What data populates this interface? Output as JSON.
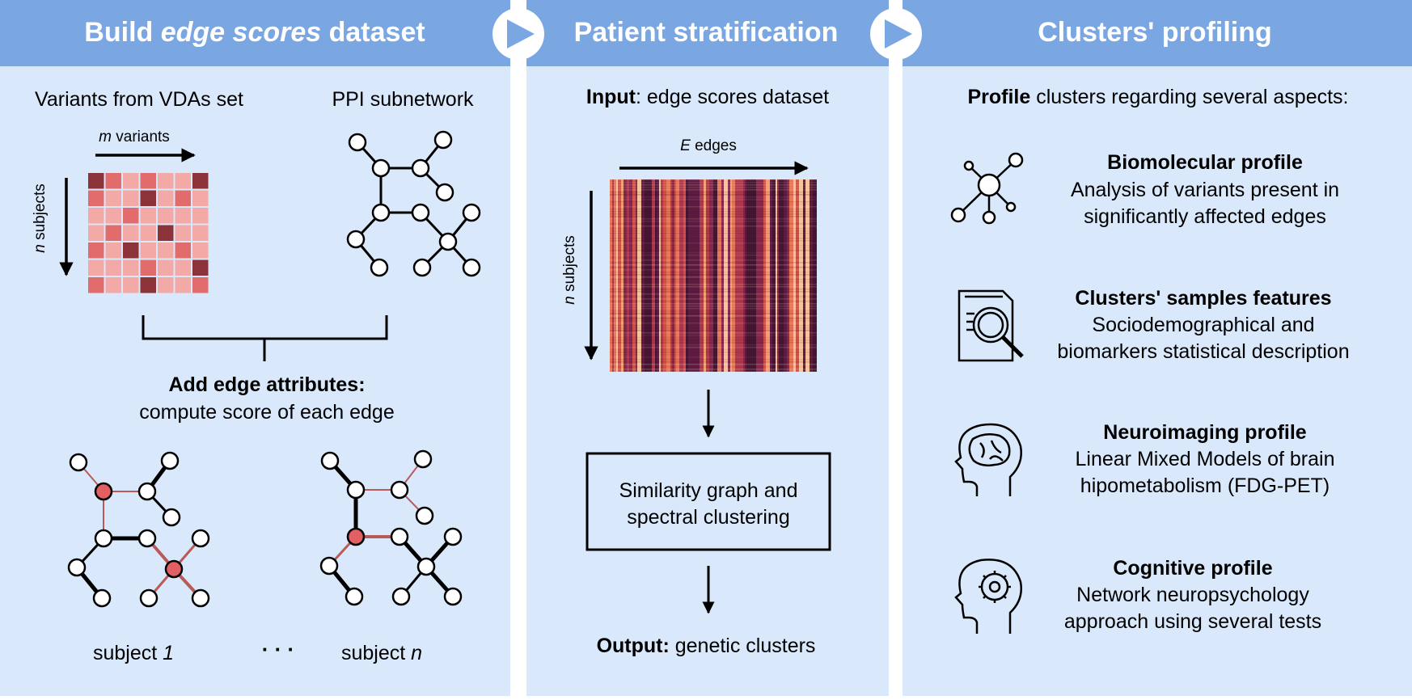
{
  "colors": {
    "panel": "#d9e8fb",
    "header": "#7aa6e1",
    "cell_light": "#f3a9a6",
    "cell_mid": "#e26b6b",
    "cell_dark": "#8b3338",
    "edge_red": "#b85a57",
    "node_red": "#e25f63"
  },
  "panel1": {
    "title_pre": "Build ",
    "title_em": "edge scores",
    "title_post": " dataset",
    "variants_label": "Variants from VDAs set",
    "ppi_label": "PPI subnetwork",
    "matrix_x_em": "m",
    "matrix_x_text": " variants",
    "matrix_y_em": "n",
    "matrix_y_text": " subjects",
    "add_attr_bold": "Add edge attributes:",
    "add_attr_text": "compute score of each edge",
    "subject_first_text": "subject ",
    "subject_first_em": "1",
    "ellipsis": "· · ·",
    "subject_last_text": "subject ",
    "subject_last_em": "n",
    "matrix": [
      [
        2,
        1,
        0,
        1,
        0,
        0,
        2
      ],
      [
        1,
        0,
        0,
        2,
        0,
        1,
        0
      ],
      [
        0,
        0,
        1,
        0,
        0,
        0,
        0
      ],
      [
        0,
        1,
        0,
        0,
        2,
        0,
        0
      ],
      [
        1,
        0,
        2,
        0,
        0,
        1,
        0
      ],
      [
        0,
        0,
        0,
        1,
        0,
        0,
        2
      ],
      [
        1,
        0,
        0,
        2,
        0,
        0,
        1
      ]
    ]
  },
  "panel2": {
    "title": "Patient stratification",
    "input_bold": "Input",
    "input_text": ": edge scores dataset",
    "x_em": "E",
    "x_text": " edges",
    "y_em": "n",
    "y_text": " subjects",
    "box_line1": "Similarity graph and",
    "box_line2": "spectral clustering",
    "output_bold": "Output:",
    "output_text": " genetic clusters"
  },
  "panel3": {
    "title": "Clusters' profiling",
    "intro_bold": "Profile",
    "intro_text": " clusters regarding several aspects:",
    "items": [
      {
        "icon": "network-icon",
        "title": "Biomolecular profile",
        "line1": "Analysis of variants present in",
        "line2": "significantly affected edges"
      },
      {
        "icon": "document-search-icon",
        "title": "Clusters' samples features",
        "line1": "Sociodemographical and",
        "line2": "biomarkers statistical description"
      },
      {
        "icon": "brain-head-icon",
        "title": "Neuroimaging profile",
        "line1": "Linear Mixed Models of brain",
        "line2": "hipometabolism (FDG-PET)"
      },
      {
        "icon": "gear-head-icon",
        "title": "Cognitive profile",
        "line1": "Network neuropsychology",
        "line2": "approach using several tests"
      }
    ]
  }
}
